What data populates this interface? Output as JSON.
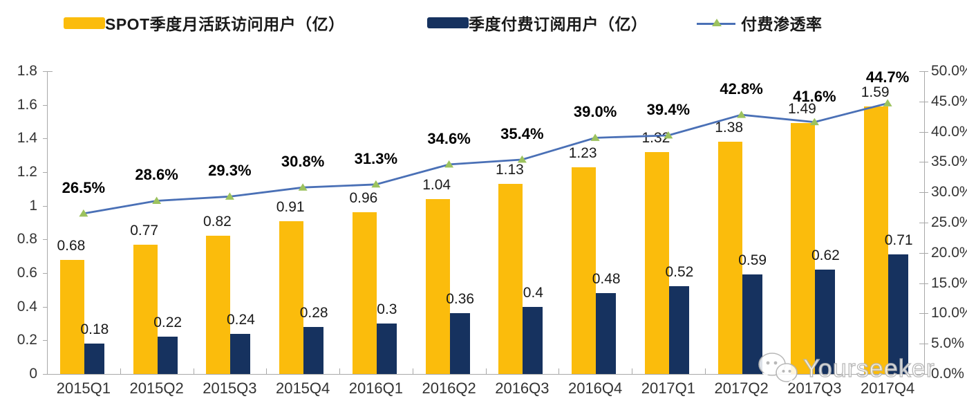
{
  "legend": {
    "mau_label": "SPOT季度月活跃访问用户（亿）",
    "subs_label": "季度付费订阅用户（亿）",
    "penetration_label": "付费渗透率"
  },
  "colors": {
    "mau_bar": "#fbbc0c",
    "subs_bar": "#16325f",
    "penetration_line": "#4a70b6",
    "penetration_marker": "#9cc25e",
    "axis": "#a8a8a8",
    "axis_text": "#333333",
    "value_text": "#1a1a1a"
  },
  "watermark": {
    "text": "Yourseeker",
    "icon": "wechat-icon"
  },
  "chart_data": {
    "type": "bar",
    "subtype": "combo-bar-line-dual-axis",
    "categories": [
      "2015Q1",
      "2015Q2",
      "2015Q3",
      "2015Q4",
      "2016Q1",
      "2016Q2",
      "2016Q3",
      "2016Q4",
      "2017Q1",
      "2017Q2",
      "2017Q3",
      "2017Q4"
    ],
    "series": [
      {
        "name": "SPOT季度月活跃访问用户（亿）",
        "type": "bar",
        "axis": "left",
        "color": "#fbbc0c",
        "values": [
          0.68,
          0.77,
          0.82,
          0.91,
          0.96,
          1.04,
          1.13,
          1.23,
          1.32,
          1.38,
          1.49,
          1.59
        ],
        "labels": [
          "0.68",
          "0.77",
          "0.82",
          "0.91",
          "0.96",
          "1.04",
          "1.13",
          "1.23",
          "1.32",
          "1.38",
          "1.49",
          "1.59"
        ]
      },
      {
        "name": "季度付费订阅用户（亿）",
        "type": "bar",
        "axis": "left",
        "color": "#16325f",
        "values": [
          0.18,
          0.22,
          0.24,
          0.28,
          0.3,
          0.36,
          0.4,
          0.48,
          0.52,
          0.59,
          0.62,
          0.71
        ],
        "labels": [
          "0.18",
          "0.22",
          "0.24",
          "0.28",
          "0.3",
          "0.36",
          "0.4",
          "0.48",
          "0.52",
          "0.59",
          "0.62",
          "0.71"
        ]
      },
      {
        "name": "付费渗透率",
        "type": "line",
        "axis": "right",
        "color": "#4a70b6",
        "marker": "triangle-up",
        "marker_color": "#9cc25e",
        "values": [
          26.5,
          28.6,
          29.3,
          30.8,
          31.3,
          34.6,
          35.4,
          39.0,
          39.4,
          42.8,
          41.6,
          44.7
        ],
        "labels": [
          "26.5%",
          "28.6%",
          "29.3%",
          "30.8%",
          "31.3%",
          "34.6%",
          "35.4%",
          "39.0%",
          "39.4%",
          "42.8%",
          "41.6%",
          "44.7%"
        ]
      }
    ],
    "left_axis": {
      "min": 0,
      "max": 1.8,
      "step": 0.2,
      "ticks": [
        "0",
        "0.2",
        "0.4",
        "0.6",
        "0.8",
        "1",
        "1.2",
        "1.4",
        "1.6",
        "1.8"
      ]
    },
    "right_axis": {
      "min": 0,
      "max": 50,
      "step": 5,
      "unit": "%",
      "ticks": [
        "0.0%",
        "5.0%",
        "10.0%",
        "15.0%",
        "20.0%",
        "25.0%",
        "30.0%",
        "35.0%",
        "40.0%",
        "45.0%",
        "50.0%"
      ]
    },
    "grid": false,
    "legend_position": "top",
    "title": ""
  }
}
